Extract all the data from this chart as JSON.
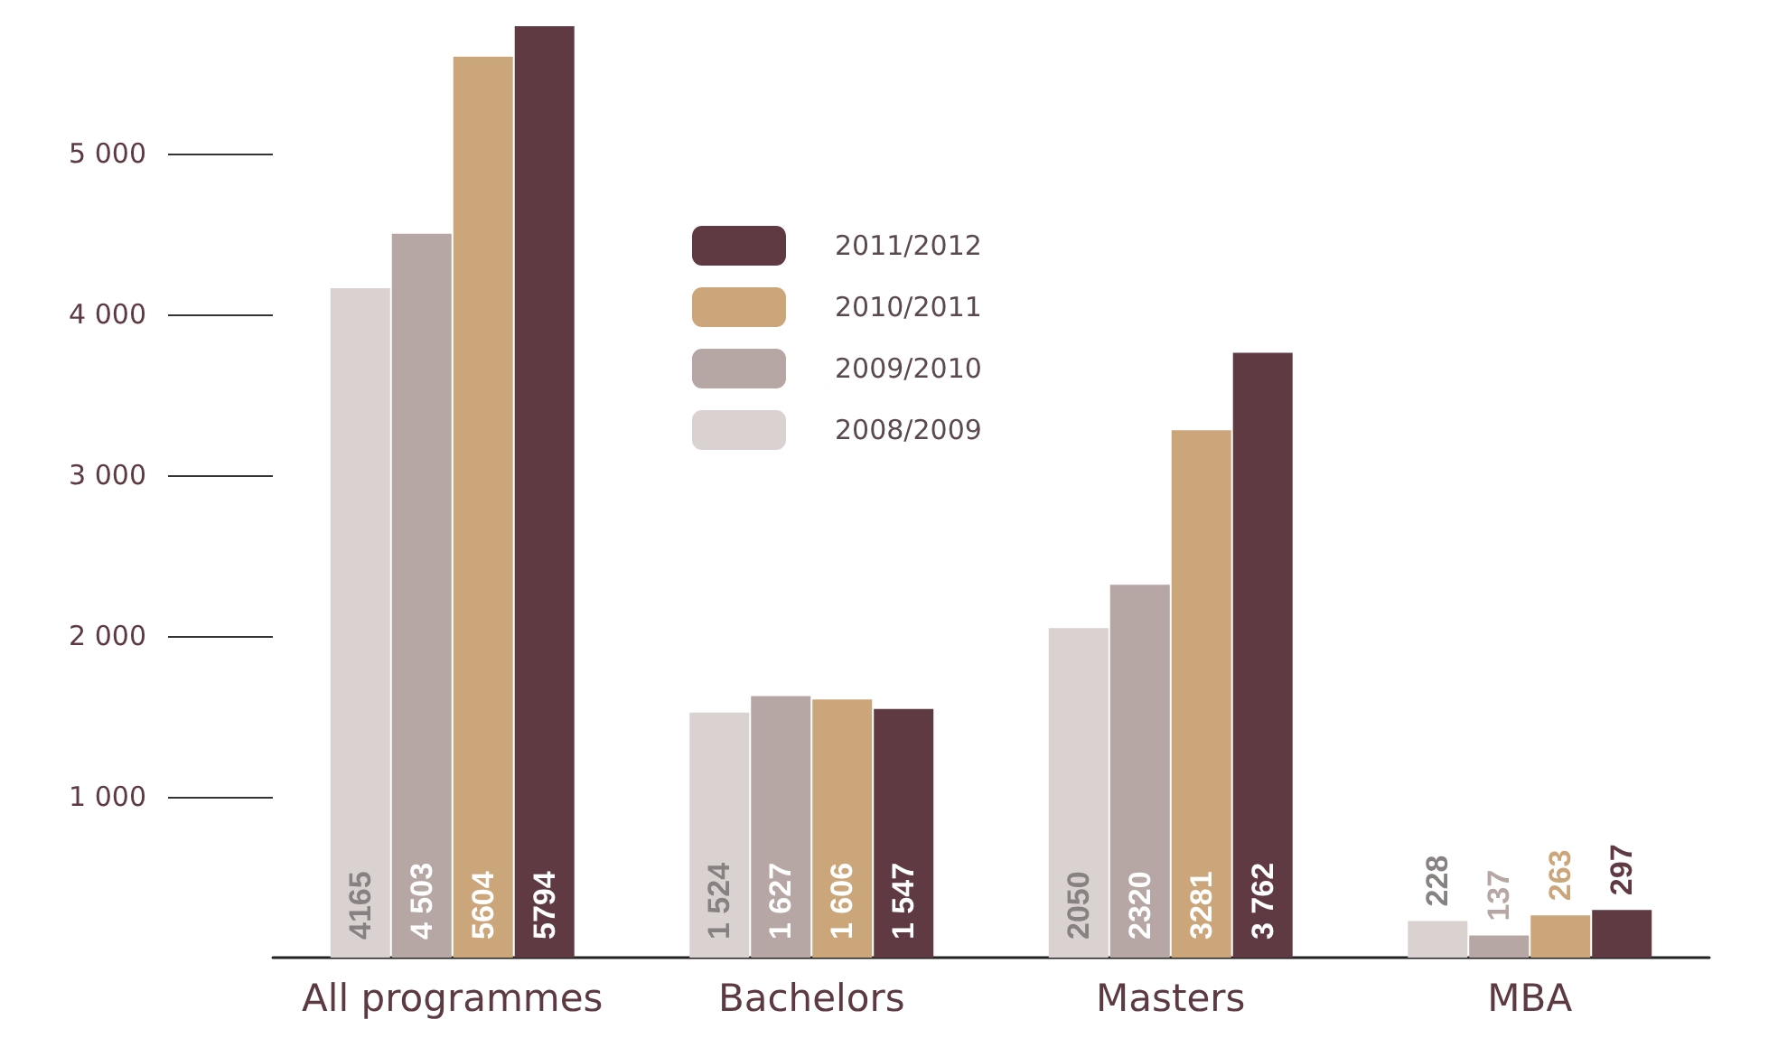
{
  "chart_data": {
    "type": "bar",
    "categories": [
      "All programmes",
      "Bachelors",
      "Masters",
      "MBA"
    ],
    "series": [
      {
        "name": "2008/2009",
        "color": "#dad1d1",
        "values": [
          4165,
          1524,
          2050,
          228
        ],
        "value_labels": [
          "4165",
          "1 524",
          "2050",
          "228"
        ]
      },
      {
        "name": "2009/2010",
        "color": "#b6a6a4",
        "values": [
          4503,
          1627,
          2320,
          137
        ],
        "value_labels": [
          "4 503",
          "1 627",
          "2320",
          "137"
        ]
      },
      {
        "name": "2010/2011",
        "color": "#cca67b",
        "values": [
          5604,
          1606,
          3281,
          263
        ],
        "value_labels": [
          "5604",
          "1 606",
          "3281",
          "263"
        ]
      },
      {
        "name": "2011/2012",
        "color": "#603a43",
        "values": [
          5794,
          1547,
          3762,
          297
        ],
        "value_labels": [
          "5794",
          "1 547",
          "3 762",
          "297"
        ]
      }
    ],
    "ylim": [
      0,
      5800
    ],
    "yticks": [
      {
        "value": 1000,
        "label": "1 000"
      },
      {
        "value": 2000,
        "label": "2 000"
      },
      {
        "value": 3000,
        "label": "3 000"
      },
      {
        "value": 4000,
        "label": "4 000"
      },
      {
        "value": 5000,
        "label": "5 000"
      }
    ],
    "grid": false,
    "legend": "top"
  }
}
